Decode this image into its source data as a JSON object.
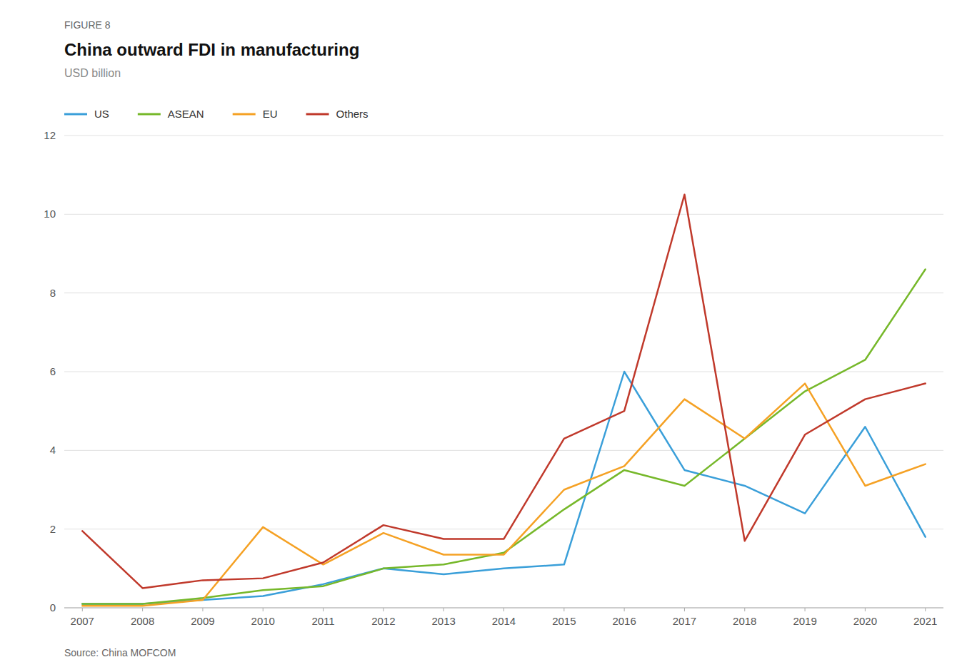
{
  "chart_data": {
    "type": "line",
    "title": "China outward FDI in manufacturing",
    "subtitle": "USD billion",
    "annotations": [
      "FIGURE 8",
      "Source: China MOFCOM"
    ],
    "x": [
      2007,
      2008,
      2009,
      2010,
      2011,
      2012,
      2013,
      2014,
      2015,
      2016,
      2017,
      2018,
      2019,
      2020,
      2021
    ],
    "series": [
      {
        "name": "US",
        "color": "#3a9fd9",
        "values": [
          0.1,
          0.1,
          0.2,
          0.3,
          0.6,
          1.0,
          0.85,
          1.0,
          1.1,
          6.0,
          3.5,
          3.1,
          2.4,
          4.6,
          1.8
        ]
      },
      {
        "name": "ASEAN",
        "color": "#76b82a",
        "values": [
          0.1,
          0.1,
          0.25,
          0.45,
          0.55,
          1.0,
          1.1,
          1.4,
          2.5,
          3.5,
          3.1,
          4.3,
          5.5,
          6.3,
          8.6
        ]
      },
      {
        "name": "EU",
        "color": "#f5a124",
        "values": [
          0.05,
          0.05,
          0.2,
          2.05,
          1.1,
          1.9,
          1.35,
          1.35,
          3.0,
          3.6,
          5.3,
          4.3,
          5.7,
          3.1,
          3.65
        ]
      },
      {
        "name": "Others",
        "color": "#c0392b",
        "values": [
          1.95,
          0.5,
          0.7,
          0.75,
          1.15,
          2.1,
          1.75,
          1.75,
          4.3,
          5.0,
          10.5,
          1.7,
          4.4,
          5.3,
          5.7
        ]
      }
    ],
    "xlim": [
      2006.7,
      2021.3
    ],
    "xticks": [
      2007,
      2008,
      2009,
      2010,
      2011,
      2012,
      2013,
      2014,
      2015,
      2016,
      2017,
      2018,
      2019,
      2020,
      2021
    ],
    "ylim": [
      0,
      12
    ],
    "yticks": [
      0,
      2,
      4,
      6,
      8,
      10,
      12
    ],
    "grid": "y",
    "legend": "upper-left"
  }
}
